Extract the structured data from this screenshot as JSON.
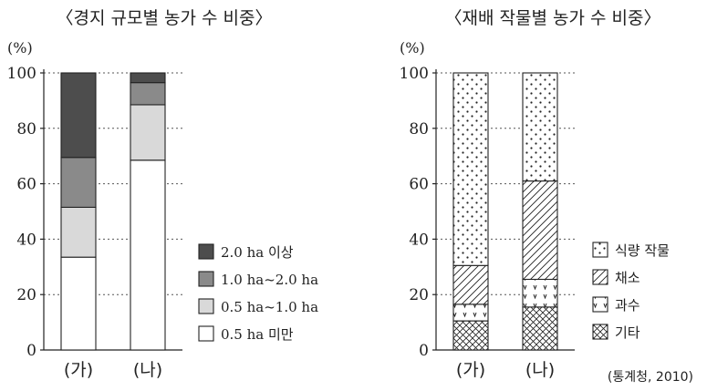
{
  "chart_data": [
    {
      "type": "bar",
      "stacked": true,
      "title": "〈경지 규모별 농가 수 비중〉",
      "ylabel": "(%)",
      "ylim": [
        0,
        100
      ],
      "yticks": [
        0,
        20,
        40,
        60,
        80,
        100
      ],
      "grid": true,
      "legend_position": "right",
      "categories": [
        "(가)",
        "(나)"
      ],
      "series": [
        {
          "name": "0.5 ha 미만",
          "color": "#ffffff",
          "values": [
            33.5,
            68.5
          ]
        },
        {
          "name": "0.5 ha~1.0 ha",
          "color": "#d9d9d9",
          "values": [
            18,
            20
          ]
        },
        {
          "name": "1.0 ha~2.0 ha",
          "color": "#8a8a8a",
          "values": [
            18,
            8
          ]
        },
        {
          "name": "2.0 ha 이상",
          "color": "#4d4d4d",
          "values": [
            30.5,
            3.5
          ]
        }
      ]
    },
    {
      "type": "bar",
      "stacked": true,
      "title": "〈재배 작물별 농가 수 비중〉",
      "ylabel": "(%)",
      "ylim": [
        0,
        100
      ],
      "yticks": [
        0,
        20,
        40,
        60,
        80,
        100
      ],
      "grid": true,
      "legend_position": "right",
      "categories": [
        "(가)",
        "(나)"
      ],
      "series": [
        {
          "name": "기타",
          "pattern": "crosshatch",
          "values": [
            10.5,
            15.5
          ]
        },
        {
          "name": "과수",
          "pattern": "v-marks",
          "values": [
            6,
            10
          ]
        },
        {
          "name": "채소",
          "pattern": "diagonal",
          "values": [
            14,
            35.5
          ]
        },
        {
          "name": "식량 작물",
          "pattern": "dots",
          "values": [
            69.5,
            39
          ]
        }
      ],
      "source": "(통계청, 2010)"
    }
  ]
}
